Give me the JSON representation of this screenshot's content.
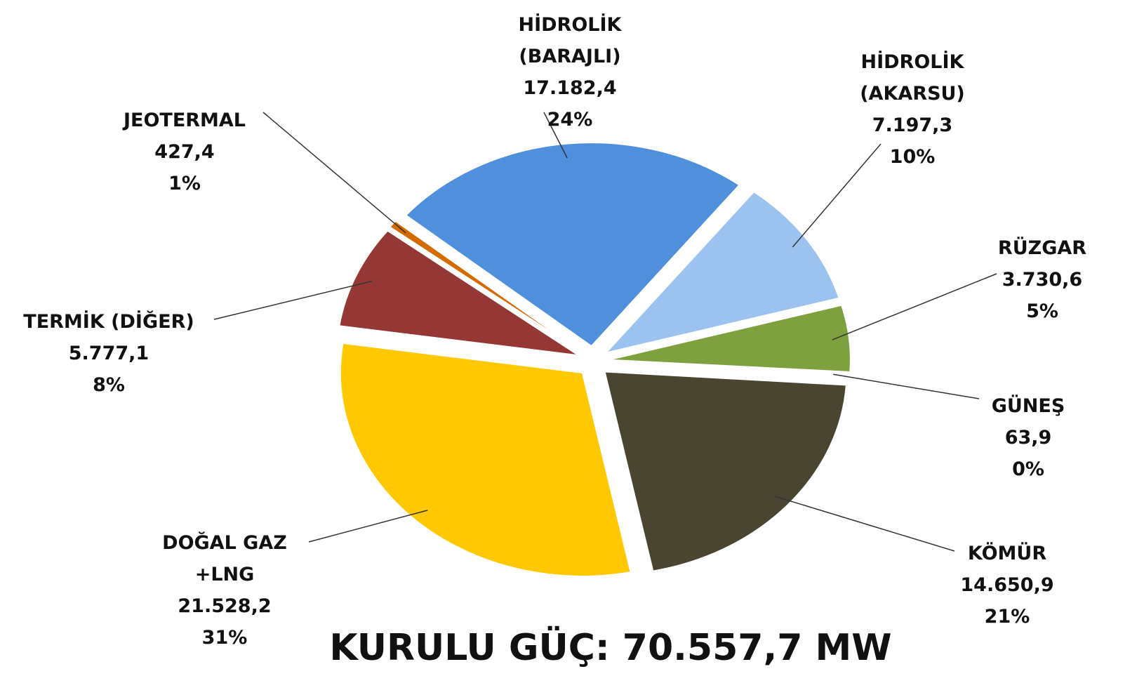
{
  "chart_data": {
    "type": "pie",
    "title": "KURULU GÜÇ: 70.557,7 MW",
    "categories": [
      [
        "HİDROLİK",
        "(BARAJLI)"
      ],
      [
        "HİDROLİK",
        "(AKARSU)"
      ],
      [
        "RÜZGAR"
      ],
      [
        "GÜNEŞ"
      ],
      [
        "KÖMÜR"
      ],
      [
        "DOĞAL GAZ",
        "+LNG"
      ],
      [
        "TERMİK (DİĞER)"
      ],
      [
        "JEOTERMAL"
      ]
    ],
    "values": [
      17182.4,
      7197.3,
      3730.6,
      63.9,
      14650.9,
      21528.2,
      5777.1,
      427.4
    ],
    "value_labels": [
      "17.182,4",
      "7.197,3",
      "3.730,6",
      "63,9",
      "14.650,9",
      "21.528,2",
      "5.777,1",
      "427,4"
    ],
    "percent_labels": [
      "24%",
      "10%",
      "5%",
      "0%",
      "21%",
      "31%",
      "8%",
      "1%"
    ],
    "colors": [
      "#4f8fdc",
      "#9cc3ef",
      "#7fa03e",
      "#d9d9d9",
      "#4a4530",
      "#ffc800",
      "#953735",
      "#d46a00"
    ]
  }
}
